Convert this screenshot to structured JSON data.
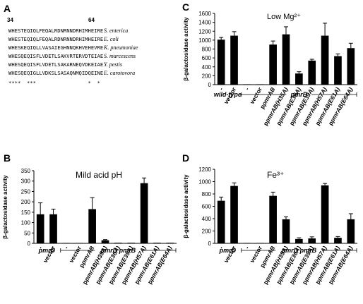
{
  "panel_letters": {
    "a": "A",
    "b": "B",
    "c": "C",
    "d": "D"
  },
  "alignment": {
    "start_pos": "34",
    "end_pos": "64",
    "rows": [
      {
        "seq": "WHESTEQIQLFEQALRDNRNNDRHIMHEIRE",
        "species": "S. enterica"
      },
      {
        "seq": "WHESTEQIQLFEQALRDNRNNDRHIMHEIRE",
        "species": "E. coli"
      },
      {
        "seq": "WHESKEQIQLLVASAIEGHNNQKHVEHEVRE",
        "species": "K. pneumoniae"
      },
      {
        "seq": "WHESQEQISFLVDETLSAKVRTERVDTEIAE",
        "species": "S. marcescens"
      },
      {
        "seq": "WHESQEQISFLVDETLSAKARNEQVDKEIAE",
        "species": "Y. pestis"
      },
      {
        "seq": "WHESQEQIGLLVDKSLSASAQNMQIDQEINE",
        "species": "E. carotovora"
      }
    ],
    "conservation": "****  ***                 *  *"
  },
  "y_axis_label": "β-galactosidase activity",
  "chart_data": [
    {
      "panel": "C",
      "type": "bar",
      "title": "Low Mg²⁺",
      "ylabel": "β-galactosidase activity",
      "ylim": [
        0,
        1600
      ],
      "yticks": [
        0,
        200,
        400,
        600,
        800,
        1000,
        1200,
        1400,
        1600
      ],
      "categories": [
        "-",
        "vector",
        "-",
        "vector",
        "p_pmrAB",
        "p_pmrAB(H35A)",
        "p_pmrAB(E36A)",
        "p_pmrAB(E39A)",
        "p_pmrAB(H57A)",
        "p_pmrAB(E61A)",
        "p_pmrAB(E64A)"
      ],
      "values": [
        1010,
        1100,
        5,
        8,
        900,
        1130,
        250,
        540,
        1100,
        640,
        820
      ],
      "errors": [
        50,
        90,
        0,
        0,
        80,
        170,
        40,
        30,
        280,
        50,
        110
      ],
      "groups": [
        {
          "label": "wild-type",
          "start": 0,
          "end": 1
        },
        {
          "label": "pmrB",
          "start": 2,
          "end": 10
        }
      ]
    },
    {
      "panel": "B",
      "type": "bar",
      "title": "Mild acid pH",
      "ylabel": "β-galactosidase activity",
      "ylim": [
        0,
        350
      ],
      "yticks": [
        0,
        50,
        100,
        150,
        200,
        250,
        300,
        350
      ],
      "categories": [
        "-",
        "vector",
        "-",
        "vector",
        "p_pmrAB",
        "p_pmrAB(H35A)",
        "p_pmrAB(E36A)",
        "p_pmrAB(E39A)",
        "p_pmrAB(H57A)",
        "p_pmrAB(E61A)",
        "p_pmrAB(E64A)"
      ],
      "values": [
        140,
        140,
        2,
        2,
        165,
        15,
        3,
        3,
        290,
        3,
        3
      ],
      "errors": [
        55,
        25,
        0,
        0,
        55,
        3,
        0,
        0,
        25,
        0,
        0
      ],
      "groups": [
        {
          "label": "pmrD",
          "start": 0,
          "end": 1
        },
        {
          "label": "pmrD pmrB",
          "start": 2,
          "end": 10
        }
      ]
    },
    {
      "panel": "D",
      "type": "bar",
      "title": "Fe³⁺",
      "ylabel": "β-galactosidase activity",
      "ylim": [
        0,
        1200
      ],
      "yticks": [
        0,
        200,
        400,
        600,
        800,
        1000,
        1200
      ],
      "categories": [
        "-",
        "vector",
        "-",
        "vector",
        "p_pmrAB",
        "p_pmrAB(H35A)",
        "p_pmrAB(E36A)",
        "p_pmrAB(E39A)",
        "p_pmrAB(H57A)",
        "p_pmrAB(E61A)",
        "p_pmrAB(E64A)"
      ],
      "values": [
        690,
        930,
        5,
        5,
        770,
        390,
        70,
        80,
        940,
        90,
        390
      ],
      "errors": [
        60,
        50,
        0,
        0,
        60,
        40,
        20,
        25,
        30,
        20,
        90
      ],
      "groups": [
        {
          "label": "pmrD",
          "start": 0,
          "end": 1
        },
        {
          "label": "pmrD pmrB",
          "start": 2,
          "end": 10
        }
      ]
    }
  ]
}
